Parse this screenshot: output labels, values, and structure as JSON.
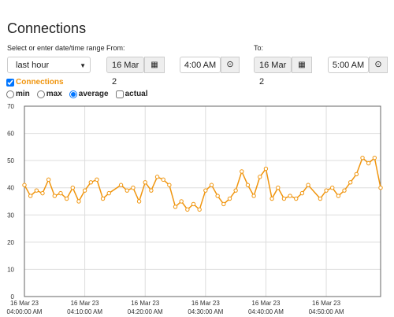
{
  "header": {
    "title": "Connections"
  },
  "range": {
    "label": "Select or enter date/time range",
    "preset": "last hour",
    "from": {
      "label": "From:",
      "date": "16 Mar 2",
      "time": "4:00 AM"
    },
    "to": {
      "label": "To:",
      "date": "16 Mar 2",
      "time": "5:00 AM"
    }
  },
  "series_toggle": {
    "label": "Connections",
    "checked": true
  },
  "modes": [
    {
      "label": "min",
      "checked": false
    },
    {
      "label": "max",
      "checked": false
    },
    {
      "label": "average",
      "checked": true
    },
    {
      "label": "actual",
      "checked": false
    }
  ],
  "chart_data": {
    "type": "line",
    "grid": true,
    "ylim": [
      0,
      70
    ],
    "yticks": [
      0,
      10,
      20,
      30,
      40,
      50,
      60,
      70
    ],
    "xlim": [
      "04:00:00 AM",
      "04:59:00 AM"
    ],
    "xticks": [
      {
        "date": "16 Mar 23",
        "time": "04:00:00 AM"
      },
      {
        "date": "16 Mar 23",
        "time": "04:10:00 AM"
      },
      {
        "date": "16 Mar 23",
        "time": "04:20:00 AM"
      },
      {
        "date": "16 Mar 23",
        "time": "04:30:00 AM"
      },
      {
        "date": "16 Mar 23",
        "time": "04:40:00 AM"
      },
      {
        "date": "16 Mar 23",
        "time": "04:50:00 AM"
      }
    ],
    "x": [
      "04:00:00 AM",
      "04:01:00 AM",
      "04:02:00 AM",
      "04:03:00 AM",
      "04:04:00 AM",
      "04:05:00 AM",
      "04:06:00 AM",
      "04:07:00 AM",
      "04:08:00 AM",
      "04:09:00 AM",
      "04:10:00 AM",
      "04:11:00 AM",
      "04:12:00 AM",
      "04:13:00 AM",
      "04:14:00 AM",
      "04:16:00 AM",
      "04:17:00 AM",
      "04:18:00 AM",
      "04:19:00 AM",
      "04:20:00 AM",
      "04:21:00 AM",
      "04:22:00 AM",
      "04:23:00 AM",
      "04:24:00 AM",
      "04:25:00 AM",
      "04:26:00 AM",
      "04:27:00 AM",
      "04:28:00 AM",
      "04:29:00 AM",
      "04:30:00 AM",
      "04:31:00 AM",
      "04:32:00 AM",
      "04:33:00 AM",
      "04:34:00 AM",
      "04:35:00 AM",
      "04:36:00 AM",
      "04:37:00 AM",
      "04:38:00 AM",
      "04:39:00 AM",
      "04:40:00 AM",
      "04:41:00 AM",
      "04:42:00 AM",
      "04:43:00 AM",
      "04:44:00 AM",
      "04:45:00 AM",
      "04:46:00 AM",
      "04:47:00 AM",
      "04:49:00 AM",
      "04:50:00 AM",
      "04:51:00 AM",
      "04:52:00 AM",
      "04:53:00 AM",
      "04:54:00 AM",
      "04:55:00 AM",
      "04:56:00 AM",
      "04:57:00 AM",
      "04:58:00 AM",
      "04:59:00 AM"
    ],
    "series": [
      {
        "name": "Connections",
        "color": "#f0950e",
        "values": [
          41,
          37,
          39,
          38,
          43,
          37,
          38,
          36,
          40,
          35,
          39,
          42,
          43,
          36,
          38,
          41,
          39,
          40,
          35,
          42,
          39,
          44,
          43,
          41,
          33,
          35,
          32,
          34,
          32,
          39,
          41,
          37,
          34,
          36,
          39,
          46,
          41,
          37,
          44,
          47,
          36,
          40,
          36,
          37,
          36,
          38,
          41,
          36,
          39,
          40,
          37,
          39,
          42,
          45,
          51,
          49,
          51,
          40
        ]
      }
    ]
  }
}
